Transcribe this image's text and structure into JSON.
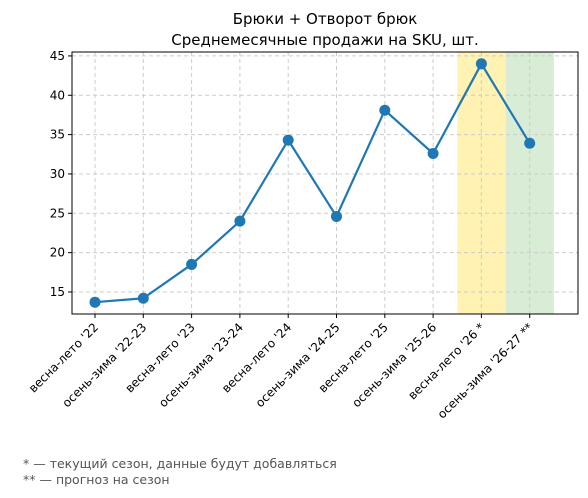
{
  "chart_data": {
    "type": "line",
    "title": "Брюки + Отворот брюк",
    "subtitle": "Среднемесячные продажи на SKU, шт.",
    "categories": [
      "весна-лето '22",
      "осень-зима '22-23",
      "весна-лето '23",
      "осень-зима '23-24",
      "весна-лето '24",
      "осень-зима '24-25",
      "весна-лето '25",
      "осень-зима '25-26",
      "весна-лето '26 *",
      "осень-зима '26-27 **"
    ],
    "series": [
      {
        "values": [
          13.7,
          14.2,
          18.5,
          24.0,
          34.3,
          24.6,
          38.1,
          32.6,
          44.0,
          33.9
        ]
      }
    ],
    "ylim": [
      12.2,
      45.5
    ],
    "yticks": [
      15,
      20,
      25,
      30,
      35,
      40,
      45
    ],
    "grid": true,
    "line_color": "#1f77b4",
    "highlights": [
      {
        "category_index": 8,
        "color": "#fff2b3"
      },
      {
        "category_index": 9,
        "color": "#d9ecd6"
      }
    ]
  },
  "footnotes": [
    "* — текущий сезон, данные будут добавляться",
    "** — прогноз на сезон"
  ]
}
